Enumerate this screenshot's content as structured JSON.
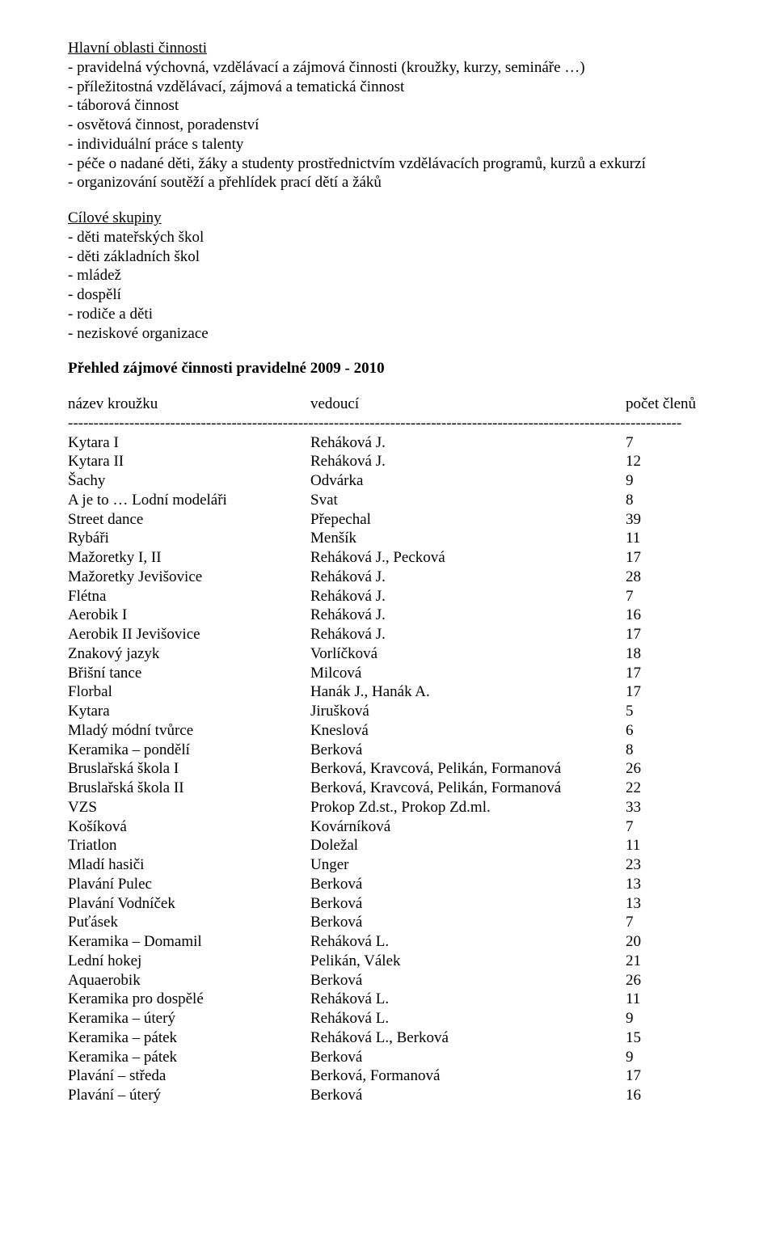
{
  "sections": {
    "hlavni": {
      "title": "Hlavní oblasti činnosti",
      "items": [
        "- pravidelná výchovná, vzdělávací a zájmová činnosti (kroužky, kurzy, semináře …)",
        "- příležitostná vzdělávací, zájmová a tematická činnost",
        "- táborová činnost",
        "- osvětová činnost, poradenství",
        "- individuální práce s talenty",
        "- péče o nadané děti, žáky a studenty prostřednictvím vzdělávacích programů, kurzů a exkurzí",
        "- organizování soutěží a přehlídek prací dětí a žáků"
      ]
    },
    "cilove": {
      "title": "Cílové skupiny",
      "items": [
        "- děti mateřských škol",
        "- děti základních škol",
        "- mládež",
        "- dospělí",
        "- rodiče a děti",
        "- neziskové organizace"
      ]
    }
  },
  "overview_title": "Přehled zájmové činnosti pravidelné 2009 - 2010",
  "table_headers": {
    "name": "název kroužku",
    "leader": "vedoucí",
    "count": "počet členů"
  },
  "dash_line": "------------------------------------------------------------------------------------------------------------------------",
  "rows": [
    {
      "name": "Kytara I",
      "leader": "Reháková J.",
      "count": "7"
    },
    {
      "name": "Kytara II",
      "leader": "Reháková J.",
      "count": "12"
    },
    {
      "name": "Šachy",
      "leader": "Odvárka",
      "count": "9"
    },
    {
      "name": "A je to … Lodní modeláři",
      "leader": "Svat",
      "count": "8"
    },
    {
      "name": "Street dance",
      "leader": "Přepechal",
      "count": "39"
    },
    {
      "name": "Rybáři",
      "leader": "Menšík",
      "count": "11"
    },
    {
      "name": "Mažoretky I, II",
      "leader": "Reháková J., Pecková",
      "count": "17"
    },
    {
      "name": "Mažoretky Jevišovice",
      "leader": "Reháková J.",
      "count": "28"
    },
    {
      "name": "Flétna",
      "leader": "Reháková J.",
      "count": "7"
    },
    {
      "name": "Aerobik I",
      "leader": "Reháková J.",
      "count": "16"
    },
    {
      "name": "Aerobik II Jevišovice",
      "leader": "Reháková J.",
      "count": "17"
    },
    {
      "name": "Znakový jazyk",
      "leader": "Vorlíčková",
      "count": "18"
    },
    {
      "name": "Břišní tance",
      "leader": "Milcová",
      "count": "17"
    },
    {
      "name": "Florbal",
      "leader": "Hanák J., Hanák A.",
      "count": "17"
    },
    {
      "name": "Kytara",
      "leader": "Jirušková",
      "count": "5"
    },
    {
      "name": "Mladý módní tvůrce",
      "leader": "Kneslová",
      "count": "6"
    },
    {
      "name": "Keramika – pondělí",
      "leader": "Berková",
      "count": "8"
    },
    {
      "name": "Bruslařská škola I",
      "leader": "Berková, Kravcová, Pelikán, Formanová",
      "count": "26"
    },
    {
      "name": "Bruslařská škola II",
      "leader": "Berková, Kravcová, Pelikán, Formanová",
      "count": "22"
    },
    {
      "name": "VZS",
      "leader": "Prokop Zd.st., Prokop Zd.ml.",
      "count": "33"
    },
    {
      "name": "Košíková",
      "leader": "Kovárníková",
      "count": "7"
    },
    {
      "name": "Triatlon",
      "leader": "Doležal",
      "count": "11"
    },
    {
      "name": "Mladí hasiči",
      "leader": "Unger",
      "count": "23"
    },
    {
      "name": "Plavání Pulec",
      "leader": "Berková",
      "count": "13"
    },
    {
      "name": "Plavání Vodníček",
      "leader": "Berková",
      "count": "13"
    },
    {
      "name": "Puťásek",
      "leader": "Berková",
      "count": "7"
    },
    {
      "name": "Keramika – Domamil",
      "leader": "Reháková L.",
      "count": "20"
    },
    {
      "name": "Lední hokej",
      "leader": "Pelikán, Válek",
      "count": "21"
    },
    {
      "name": "Aquaerobik",
      "leader": "Berková",
      "count": "26"
    },
    {
      "name": "Keramika pro dospělé",
      "leader": "Reháková L.",
      "count": "11"
    },
    {
      "name": "Keramika – úterý",
      "leader": "Reháková L.",
      "count": "9"
    },
    {
      "name": "Keramika – pátek",
      "leader": "Reháková L., Berková",
      "count": "15"
    },
    {
      "name": "Keramika – pátek",
      "leader": "Berková",
      "count": "9"
    },
    {
      "name": "Plavání – středa",
      "leader": "Berková, Formanová",
      "count": "17"
    },
    {
      "name": "Plavání – úterý",
      "leader": "Berková",
      "count": "16"
    }
  ]
}
